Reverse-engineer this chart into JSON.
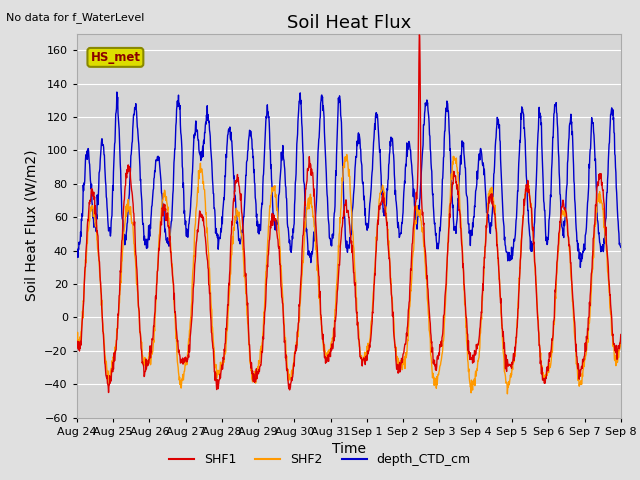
{
  "title": "Soil Heat Flux",
  "top_left_text": "No data for f_WaterLevel",
  "xlabel": "Time",
  "ylabel": "Soil Heat Flux (W/m2)",
  "ylim": [
    -60,
    170
  ],
  "yticks": [
    -60,
    -40,
    -20,
    0,
    20,
    40,
    60,
    80,
    100,
    120,
    140,
    160
  ],
  "background_color": "#e0e0e0",
  "plot_bg_color": "#d8d8d8",
  "grid_color": "#ffffff",
  "shf1_color": "#dd0000",
  "shf2_color": "#ff9900",
  "depth_color": "#0000cc",
  "legend_box_color": "#dddd00",
  "legend_box_edge": "#888800",
  "hs_met_text": "HS_met",
  "xtick_labels": [
    "Aug 24",
    "Aug 25",
    "Aug 26",
    "Aug 27",
    "Aug 28",
    "Aug 29",
    "Aug 30",
    "Aug 31",
    "Sep 1",
    "Sep 2",
    "Sep 3",
    "Sep 4",
    "Sep 5",
    "Sep 6",
    "Sep 7",
    "Sep 8"
  ],
  "title_fontsize": 13,
  "axis_fontsize": 10,
  "tick_fontsize": 8,
  "legend_fontsize": 9,
  "n_days": 15,
  "n_per_day": 96
}
